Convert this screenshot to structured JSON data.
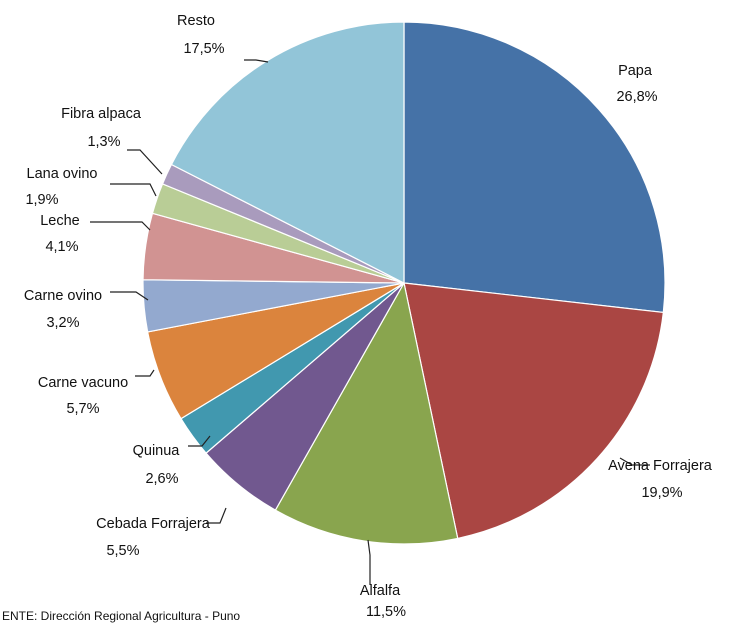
{
  "chart_data": {
    "type": "pie",
    "title": "",
    "categories": [
      "Papa",
      "Avena Forrajera",
      "Alfalfa",
      "Cebada Forrajera",
      "Quinua",
      "Carne vacuno",
      "Carne ovino",
      "Leche",
      "Lana ovino",
      "Fibra alpaca",
      "Resto"
    ],
    "values": [
      26.8,
      19.9,
      11.5,
      5.5,
      2.6,
      5.7,
      3.2,
      4.1,
      1.9,
      1.3,
      17.5
    ],
    "value_labels": [
      "26,8%",
      "19,9%",
      "11,5%",
      "5,5%",
      "2,6%",
      "5,7%",
      "3,2%",
      "4,1%",
      "1,9%",
      "1,3%",
      "17,5%"
    ],
    "colors": [
      "#4572a7",
      "#aa4643",
      "#89a54e",
      "#71588f",
      "#4198af",
      "#db843d",
      "#93a9cf",
      "#d19392",
      "#b9cd96",
      "#a99bbd",
      "#92c5d8"
    ],
    "start_angle": "12 o'clock",
    "direction": "clockwise",
    "legend": "none"
  },
  "source_note": "ENTE: Dirección Regional Agricultura - Puno"
}
